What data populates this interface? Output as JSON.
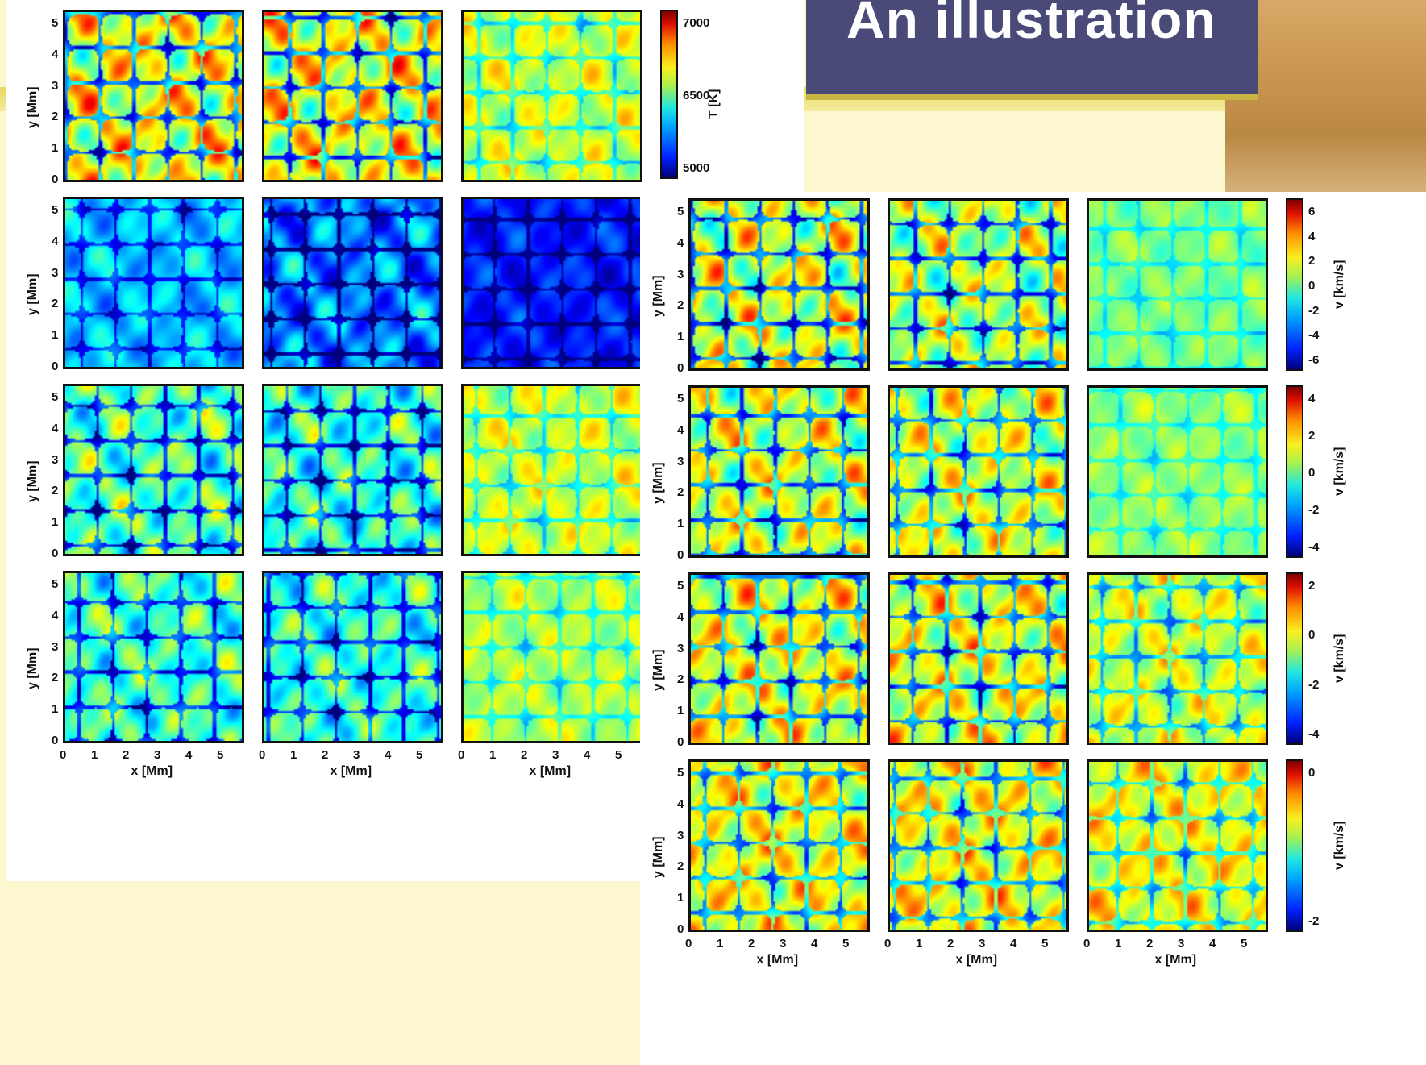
{
  "slide": {
    "title": "An illustration"
  },
  "colors": {
    "background": "#fdf7cf",
    "title_bar": "#4a4a78",
    "title_text": "#ffffff"
  },
  "chart_data": [
    {
      "type": "heatmap",
      "description_rows": 4,
      "description_cols": 3,
      "x_ticks": [
        "0",
        "1",
        "2",
        "3",
        "4",
        "5"
      ],
      "x_labels": [
        "x [Mm]",
        "x [Mm]",
        "x [Mm]"
      ],
      "y_ticks_row1": [
        "0",
        "1",
        "2",
        "3",
        "4",
        "5"
      ],
      "y_ticks_row2": [
        "0",
        "1",
        "2",
        "3",
        "4",
        "5"
      ],
      "y_ticks_row3": [
        "0",
        "1",
        "2",
        "3",
        "4",
        "5"
      ],
      "y_ticks_row4": [
        "0",
        "1",
        "2",
        "3",
        "4",
        "5"
      ],
      "y_labels": [
        "y [Mm]",
        "y [Mm]",
        "y [Mm]",
        "y [Mm]"
      ],
      "colorbar": {
        "label": "T [K]",
        "ticks": [
          "5000",
          "6500",
          "7000"
        ]
      }
    },
    {
      "type": "heatmap",
      "description_rows": 4,
      "description_cols": 3,
      "x_ticks": [
        "0",
        "1",
        "2",
        "3",
        "4",
        "5"
      ],
      "x_labels": [
        "x [Mm]",
        "x [Mm]",
        "x [Mm]"
      ],
      "y_ticks_row1": [
        "0",
        "1",
        "2",
        "3",
        "4",
        "5"
      ],
      "y_ticks_row2": [
        "0",
        "1",
        "2",
        "3",
        "4",
        "5"
      ],
      "y_ticks_row3": [
        "0",
        "1",
        "2",
        "3",
        "4",
        "5"
      ],
      "y_ticks_row4": [
        "0",
        "1",
        "2",
        "3",
        "4",
        "5"
      ],
      "y_labels": [
        "y [Mm]",
        "y [Mm]",
        "y [Mm]",
        "y [Mm]"
      ],
      "colorbars": [
        {
          "label": "v [km/s]",
          "ticks": [
            "6",
            "4",
            "2",
            "0",
            "-2",
            "-4",
            "-6"
          ]
        },
        {
          "label": "v [km/s]",
          "ticks": [
            "4",
            "2",
            "0",
            "-2",
            "-4"
          ]
        },
        {
          "label": "v [km/s]",
          "ticks": [
            "2",
            "0",
            "-2",
            "-4"
          ]
        },
        {
          "label": "v [km/s]",
          "ticks": [
            "0",
            "-2"
          ]
        }
      ]
    }
  ]
}
